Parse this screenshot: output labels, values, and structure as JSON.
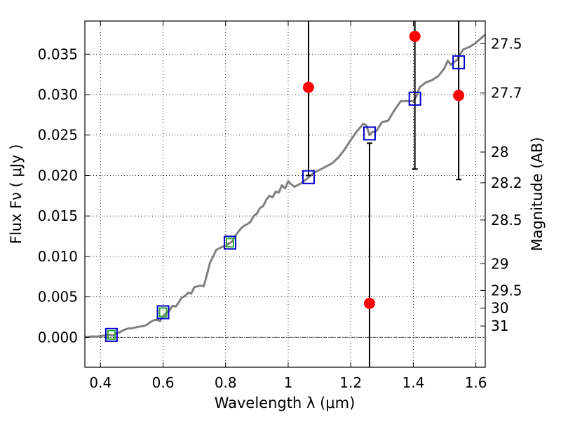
{
  "chart_data": {
    "type": "scatter",
    "xlabel": "Wavelength  λ (μm)",
    "ylabel": "Flux  Fν  ( μJy )",
    "ylabel2": "Magnitude (AB)",
    "xlim": [
      0.35,
      1.63
    ],
    "ylim": [
      -0.0037,
      0.0391
    ],
    "grid": true,
    "x_ticks": [
      0.4,
      0.6,
      0.8,
      1.0,
      1.2,
      1.4,
      1.6
    ],
    "x_tick_labels": [
      "0.4",
      "0.6",
      "0.8",
      "1",
      "1.2",
      "1.4",
      "1.6"
    ],
    "y_ticks": [
      0.0,
      0.005,
      0.01,
      0.015,
      0.02,
      0.025,
      0.03,
      0.035
    ],
    "y_tick_labels": [
      "0.000",
      "0.005",
      "0.010",
      "0.015",
      "0.020",
      "0.025",
      "0.030",
      "0.035"
    ],
    "magnitude_ticks": [
      {
        "label": "27.5",
        "flux": 0.0363
      },
      {
        "label": "27.7",
        "flux": 0.0302
      },
      {
        "label": "28",
        "flux": 0.0229
      },
      {
        "label": "28.2",
        "flux": 0.0191
      },
      {
        "label": "28.5",
        "flux": 0.0145
      },
      {
        "label": "29",
        "flux": 0.0091
      },
      {
        "label": "29.5",
        "flux": 0.0058
      },
      {
        "label": "30",
        "flux": 0.0036
      },
      {
        "label": "31",
        "flux": 0.0014
      }
    ],
    "series": [
      {
        "kind": "model_spectrum",
        "color": "#808080",
        "points": [
          [
            0.35,
            0.0
          ],
          [
            0.37,
            0.0001
          ],
          [
            0.39,
            0.0001
          ],
          [
            0.41,
            0.0002
          ],
          [
            0.43,
            0.0003
          ],
          [
            0.44,
            0.0002
          ],
          [
            0.45,
            0.0005
          ],
          [
            0.46,
            0.0006
          ],
          [
            0.47,
            0.0008
          ],
          [
            0.48,
            0.001
          ],
          [
            0.49,
            0.0011
          ],
          [
            0.5,
            0.0011
          ],
          [
            0.52,
            0.0013
          ],
          [
            0.54,
            0.0014
          ],
          [
            0.55,
            0.0016
          ],
          [
            0.56,
            0.0019
          ],
          [
            0.57,
            0.0021
          ],
          [
            0.58,
            0.0022
          ],
          [
            0.59,
            0.002
          ],
          [
            0.6,
            0.0026
          ],
          [
            0.61,
            0.003
          ],
          [
            0.62,
            0.0033
          ],
          [
            0.63,
            0.0039
          ],
          [
            0.64,
            0.0038
          ],
          [
            0.65,
            0.0043
          ],
          [
            0.66,
            0.0049
          ],
          [
            0.67,
            0.0051
          ],
          [
            0.68,
            0.0055
          ],
          [
            0.69,
            0.0054
          ],
          [
            0.7,
            0.0062
          ],
          [
            0.71,
            0.0063
          ],
          [
            0.72,
            0.0064
          ],
          [
            0.73,
            0.0063
          ],
          [
            0.74,
            0.0077
          ],
          [
            0.75,
            0.0092
          ],
          [
            0.76,
            0.01
          ],
          [
            0.77,
            0.0108
          ],
          [
            0.78,
            0.011
          ],
          [
            0.79,
            0.0112
          ],
          [
            0.8,
            0.0113
          ],
          [
            0.81,
            0.0116
          ],
          [
            0.82,
            0.0118
          ],
          [
            0.83,
            0.0125
          ],
          [
            0.84,
            0.013
          ],
          [
            0.85,
            0.0135
          ],
          [
            0.86,
            0.0138
          ],
          [
            0.87,
            0.014
          ],
          [
            0.88,
            0.0143
          ],
          [
            0.89,
            0.015
          ],
          [
            0.9,
            0.0153
          ],
          [
            0.91,
            0.016
          ],
          [
            0.92,
            0.0162
          ],
          [
            0.93,
            0.017
          ],
          [
            0.94,
            0.0175
          ],
          [
            0.95,
            0.0173
          ],
          [
            0.96,
            0.018
          ],
          [
            0.97,
            0.0179
          ],
          [
            0.98,
            0.0188
          ],
          [
            0.99,
            0.0184
          ],
          [
            1.0,
            0.0193
          ],
          [
            1.01,
            0.0189
          ],
          [
            1.02,
            0.0186
          ],
          [
            1.04,
            0.019
          ],
          [
            1.06,
            0.0196
          ],
          [
            1.08,
            0.0203
          ],
          [
            1.1,
            0.0207
          ],
          [
            1.12,
            0.0211
          ],
          [
            1.14,
            0.0215
          ],
          [
            1.16,
            0.0222
          ],
          [
            1.18,
            0.0232
          ],
          [
            1.2,
            0.0244
          ],
          [
            1.22,
            0.0255
          ],
          [
            1.24,
            0.0264
          ],
          [
            1.25,
            0.0262
          ],
          [
            1.26,
            0.025
          ],
          [
            1.27,
            0.0254
          ],
          [
            1.28,
            0.0254
          ],
          [
            1.3,
            0.0266
          ],
          [
            1.32,
            0.0268
          ],
          [
            1.34,
            0.0281
          ],
          [
            1.36,
            0.0292
          ],
          [
            1.38,
            0.0292
          ],
          [
            1.4,
            0.0292
          ],
          [
            1.41,
            0.0298
          ],
          [
            1.42,
            0.0309
          ],
          [
            1.44,
            0.0315
          ],
          [
            1.46,
            0.0318
          ],
          [
            1.48,
            0.0323
          ],
          [
            1.5,
            0.0333
          ],
          [
            1.51,
            0.0342
          ],
          [
            1.52,
            0.0337
          ],
          [
            1.54,
            0.0343
          ],
          [
            1.55,
            0.035
          ],
          [
            1.56,
            0.0356
          ],
          [
            1.58,
            0.0359
          ],
          [
            1.6,
            0.0364
          ],
          [
            1.62,
            0.0371
          ],
          [
            1.63,
            0.0374
          ]
        ]
      },
      {
        "kind": "model_photometry",
        "marker": "square",
        "color": "#0000cc",
        "points": [
          [
            0.435,
            0.0003
          ],
          [
            0.6,
            0.0031
          ],
          [
            0.814,
            0.0117
          ],
          [
            1.065,
            0.0198
          ],
          [
            1.26,
            0.0252
          ],
          [
            1.405,
            0.0295
          ],
          [
            1.545,
            0.034
          ]
        ]
      },
      {
        "kind": "model_photometry_inner",
        "marker": "square",
        "color": "#33aa33",
        "points": [
          [
            0.435,
            0.0003
          ],
          [
            0.6,
            0.0031
          ],
          [
            0.814,
            0.0117
          ]
        ]
      },
      {
        "kind": "observed",
        "marker": "circle",
        "color": "#ff0000",
        "points": [
          {
            "x": 1.065,
            "y": 0.0309,
            "ylo": 0.02,
            "yhi": 0.0391
          },
          {
            "x": 1.26,
            "y": 0.0042,
            "ylo": -0.0037,
            "yhi": 0.024
          },
          {
            "x": 1.405,
            "y": 0.0372,
            "ylo": 0.0208,
            "yhi": 0.0391
          },
          {
            "x": 1.545,
            "y": 0.0299,
            "ylo": 0.0195,
            "yhi": 0.0391
          }
        ]
      }
    ]
  }
}
